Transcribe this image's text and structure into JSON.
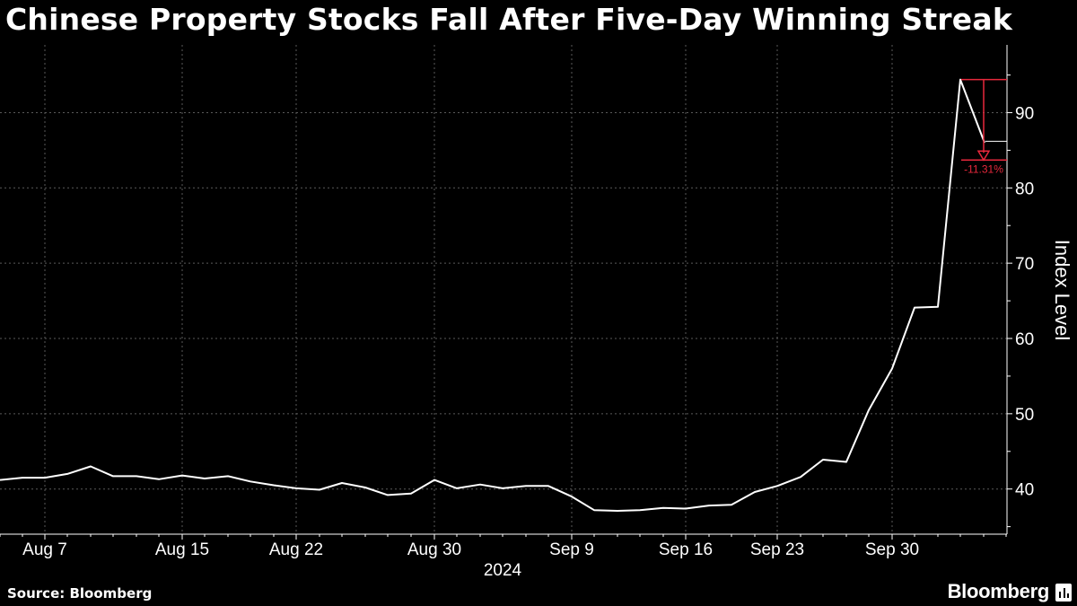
{
  "title": "Chinese Property Stocks Fall After Five-Day Winning Streak",
  "source": "Source: Bloomberg",
  "brand": "Bloomberg",
  "colors": {
    "background": "#000000",
    "line": "#ffffff",
    "grid": "#5a5a5a",
    "annotation": "#e8283c"
  },
  "chart_data": {
    "type": "line",
    "title": "Chinese Property Stocks Fall After Five-Day Winning Streak",
    "xlabel": "2024",
    "ylabel": "Index Level",
    "ylim": [
      34,
      99
    ],
    "yticks": [
      40,
      50,
      60,
      70,
      80,
      90
    ],
    "xticks": [
      "Aug 7",
      "Aug 15",
      "Aug 22",
      "Aug 30",
      "Sep 9",
      "Sep 16",
      "Sep 23",
      "Sep 30"
    ],
    "grid": true,
    "x": [
      "2024-08-05",
      "2024-08-06",
      "2024-08-07",
      "2024-08-08",
      "2024-08-09",
      "2024-08-12",
      "2024-08-13",
      "2024-08-14",
      "2024-08-15",
      "2024-08-16",
      "2024-08-19",
      "2024-08-20",
      "2024-08-21",
      "2024-08-22",
      "2024-08-23",
      "2024-08-26",
      "2024-08-27",
      "2024-08-28",
      "2024-08-29",
      "2024-08-30",
      "2024-09-02",
      "2024-09-03",
      "2024-09-04",
      "2024-09-05",
      "2024-09-06",
      "2024-09-09",
      "2024-09-10",
      "2024-09-11",
      "2024-09-12",
      "2024-09-13",
      "2024-09-16",
      "2024-09-18",
      "2024-09-19",
      "2024-09-20",
      "2024-09-23",
      "2024-09-24",
      "2024-09-25",
      "2024-09-26",
      "2024-09-27",
      "2024-09-30",
      "2024-10-02",
      "2024-10-03",
      "2024-10-04",
      "2024-10-07",
      "2024-10-08"
    ],
    "series": [
      {
        "values": [
          41.2,
          41.5,
          41.5,
          42.0,
          43.0,
          41.7,
          41.7,
          41.3,
          41.8,
          41.4,
          41.7,
          41.0,
          40.5,
          40.1,
          39.9,
          40.8,
          40.2,
          39.2,
          39.4,
          41.2,
          40.1,
          40.6,
          40.1,
          40.4,
          40.4,
          39.0,
          37.2,
          37.1,
          37.2,
          37.5,
          37.4,
          37.8,
          37.9,
          39.6,
          40.4,
          41.6,
          43.9,
          43.6,
          50.5,
          56.0,
          64.1,
          64.2,
          94.4,
          null,
          null
        ]
      }
    ],
    "annotation": {
      "label": "-11.31%",
      "from_value": 94.4,
      "to_value": 83.7
    }
  }
}
